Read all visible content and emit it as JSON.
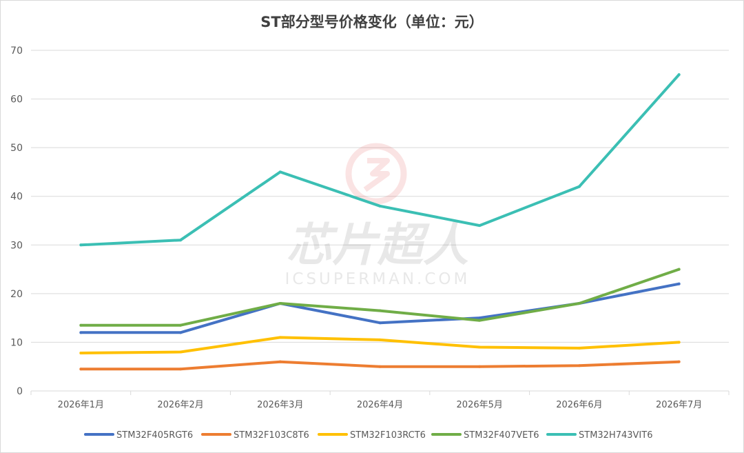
{
  "chart_data": {
    "type": "line",
    "title": "ST部分型号价格变化（单位：元）",
    "xlabel": "",
    "ylabel": "",
    "categories": [
      "2026年1月",
      "2026年2月",
      "2026年3月",
      "2026年4月",
      "2026年5月",
      "2026年6月",
      "2026年7月"
    ],
    "ylim": [
      0,
      70
    ],
    "yticks": [
      0,
      10,
      20,
      30,
      40,
      50,
      60,
      70
    ],
    "grid": true,
    "legend": "bottom",
    "series": [
      {
        "name": "STM32F405RGT6",
        "color": "#4472c4",
        "values": [
          12,
          12,
          18,
          14,
          15,
          18,
          22
        ]
      },
      {
        "name": "STM32F103C8T6",
        "color": "#ed7d31",
        "values": [
          4.5,
          4.5,
          6,
          5,
          5,
          5.2,
          6
        ]
      },
      {
        "name": "STM32F103RCT6",
        "color": "#ffc000",
        "values": [
          7.8,
          8,
          11,
          10.5,
          9,
          8.8,
          10
        ]
      },
      {
        "name": "STM32F407VET6",
        "color": "#70ad47",
        "values": [
          13.5,
          13.5,
          18,
          16.5,
          14.5,
          18,
          25
        ]
      },
      {
        "name": "STM32H743VIT6",
        "color": "#3bbfb4",
        "values": [
          30,
          31,
          45,
          38,
          34,
          42,
          65
        ]
      }
    ]
  },
  "watermark": {
    "main_text": "芯片超人",
    "sub_text": "ICSUPERMAN.COM"
  }
}
